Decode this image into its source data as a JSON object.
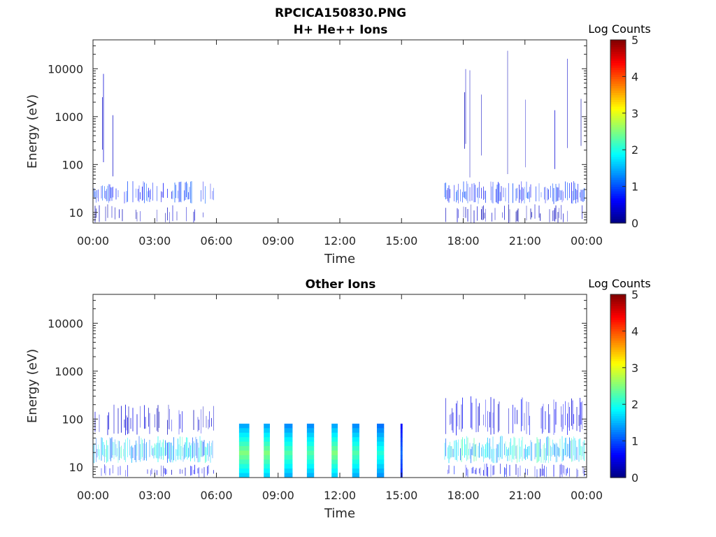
{
  "figure": {
    "title": "RPCICA150830.PNG"
  },
  "chart_data": [
    {
      "type": "heatmap",
      "title": "H+ He++ Ions",
      "xlabel": "Time",
      "ylabel": "Energy (eV)",
      "xticks": [
        "00:00",
        "03:00",
        "06:00",
        "09:00",
        "12:00",
        "15:00",
        "18:00",
        "21:00",
        "00:00"
      ],
      "xlim_hours": [
        0,
        24
      ],
      "yscale": "log",
      "yticks": [
        "10",
        "100",
        "1000",
        "10000"
      ],
      "ylim": [
        6,
        40000
      ],
      "colorbar": {
        "title": "Log Counts",
        "ticks": [
          "0",
          "1",
          "2",
          "3",
          "4",
          "5"
        ],
        "range": [
          0,
          5
        ],
        "colormap": "jet"
      },
      "blocks": [
        {
          "t0": 0.0,
          "t1": 5.9,
          "e0": 15,
          "e1": 45,
          "value": 0.8,
          "density": 0.55
        },
        {
          "t0": 0.0,
          "t1": 5.9,
          "e0": 6,
          "e1": 15,
          "value": 0.3,
          "density": 0.15
        },
        {
          "t0": 0.0,
          "t1": 1.3,
          "e0": 45,
          "e1": 20000,
          "value": 0.3,
          "density": 0.12
        },
        {
          "t0": 5.3,
          "t1": 5.9,
          "e0": 45,
          "e1": 20000,
          "value": 0.3,
          "density": 0.15
        },
        {
          "t0": 17.1,
          "t1": 23.9,
          "e0": 15,
          "e1": 45,
          "value": 0.8,
          "density": 0.6
        },
        {
          "t0": 17.1,
          "t1": 23.9,
          "e0": 6,
          "e1": 15,
          "value": 0.3,
          "density": 0.2
        },
        {
          "t0": 17.1,
          "t1": 23.9,
          "e0": 45,
          "e1": 25000,
          "value": 0.3,
          "density": 0.1
        }
      ]
    },
    {
      "type": "heatmap",
      "title": "Other Ions",
      "xlabel": "Time",
      "ylabel": "Energy (eV)",
      "xticks": [
        "00:00",
        "03:00",
        "06:00",
        "09:00",
        "12:00",
        "15:00",
        "18:00",
        "21:00",
        "00:00"
      ],
      "xlim_hours": [
        0,
        24
      ],
      "yscale": "log",
      "yticks": [
        "10",
        "100",
        "1000",
        "10000"
      ],
      "ylim": [
        6,
        40000
      ],
      "colorbar": {
        "title": "Log Counts",
        "ticks": [
          "0",
          "1",
          "2",
          "3",
          "4",
          "5"
        ],
        "range": [
          0,
          5
        ],
        "colormap": "jet"
      },
      "blocks": [
        {
          "t0": 0.0,
          "t1": 5.9,
          "e0": 12,
          "e1": 45,
          "value": 1.6,
          "density": 0.9
        },
        {
          "t0": 0.0,
          "t1": 5.9,
          "e0": 45,
          "e1": 200,
          "value": 0.4,
          "density": 0.35
        },
        {
          "t0": 0.0,
          "t1": 5.9,
          "e0": 6,
          "e1": 12,
          "value": 0.5,
          "density": 0.3
        },
        {
          "t0": 7.1,
          "t1": 7.6,
          "e0": 6,
          "e1": 80,
          "value": 2.2,
          "density": 1.0
        },
        {
          "t0": 8.3,
          "t1": 8.6,
          "e0": 6,
          "e1": 80,
          "value": 2.2,
          "density": 1.0
        },
        {
          "t0": 9.3,
          "t1": 9.7,
          "e0": 6,
          "e1": 80,
          "value": 2.0,
          "density": 1.0
        },
        {
          "t0": 10.4,
          "t1": 10.75,
          "e0": 6,
          "e1": 80,
          "value": 2.0,
          "density": 1.0
        },
        {
          "t0": 11.6,
          "t1": 11.9,
          "e0": 6,
          "e1": 80,
          "value": 2.2,
          "density": 1.0
        },
        {
          "t0": 12.6,
          "t1": 12.95,
          "e0": 6,
          "e1": 80,
          "value": 2.0,
          "density": 1.0
        },
        {
          "t0": 13.8,
          "t1": 14.15,
          "e0": 6,
          "e1": 80,
          "value": 1.8,
          "density": 1.0
        },
        {
          "t0": 14.95,
          "t1": 15.05,
          "e0": 6,
          "e1": 80,
          "value": 1.0,
          "density": 1.0
        },
        {
          "t0": 17.1,
          "t1": 23.9,
          "e0": 12,
          "e1": 45,
          "value": 1.7,
          "density": 0.9
        },
        {
          "t0": 17.1,
          "t1": 23.9,
          "e0": 45,
          "e1": 300,
          "value": 0.5,
          "density": 0.45
        },
        {
          "t0": 17.1,
          "t1": 23.9,
          "e0": 6,
          "e1": 12,
          "value": 0.6,
          "density": 0.35
        }
      ]
    }
  ]
}
